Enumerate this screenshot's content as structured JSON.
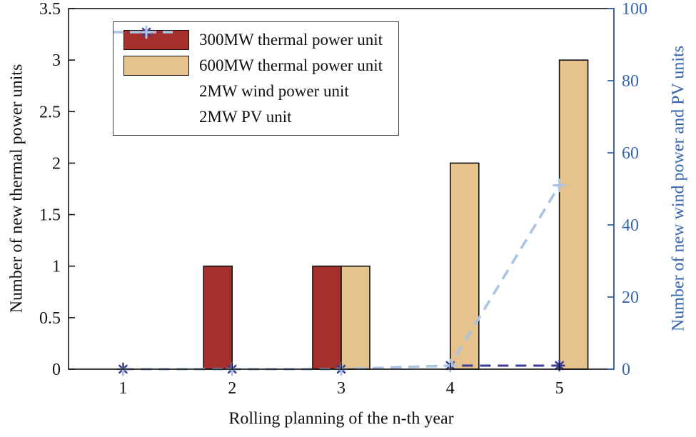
{
  "figure": {
    "background": "#ffffff"
  },
  "chart_data": {
    "type": "bar+line",
    "categories": [
      "1",
      "2",
      "3",
      "4",
      "5"
    ],
    "bar_series": [
      {
        "name": "300MW thermal power unit",
        "color": "#a5302b",
        "edge_color": "#111111",
        "values": [
          0,
          1,
          1,
          0,
          0
        ],
        "axis": "left"
      },
      {
        "name": "600MW thermal power unit",
        "color": "#e6c28d",
        "edge_color": "#111111",
        "values": [
          0,
          0,
          1,
          2,
          3
        ],
        "axis": "left"
      }
    ],
    "line_series": [
      {
        "name": "2MW wind power unit",
        "color": "#3b3b98",
        "marker": "asterisk",
        "style": "dashed",
        "values": [
          0,
          0,
          0,
          1,
          1
        ],
        "axis": "right"
      },
      {
        "name": "2MW PV unit",
        "color": "#aac4e4",
        "marker": "plus",
        "style": "dashed",
        "values": [
          0,
          0,
          0,
          1,
          51
        ],
        "axis": "right"
      }
    ],
    "xlabel": "Rolling planning of the n-th year",
    "ylabel_left": "Number of new thermal power units",
    "ylabel_right": "Number of new wind power and PV units",
    "left_axis": {
      "min": 0,
      "max": 3.5,
      "step": 0.5,
      "color": "#111111",
      "tick_labels": [
        "0",
        "0.5",
        "1",
        "1.5",
        "2",
        "2.5",
        "3",
        "3.5"
      ]
    },
    "right_axis": {
      "min": 0,
      "max": 100,
      "step": 20,
      "color": "#3565ae",
      "tick_labels": [
        "0",
        "20",
        "40",
        "60",
        "80",
        "100"
      ]
    },
    "x_ticks": [
      "1",
      "2",
      "3",
      "4",
      "5"
    ],
    "legend_position": "top-left-inside",
    "grid": false
  }
}
